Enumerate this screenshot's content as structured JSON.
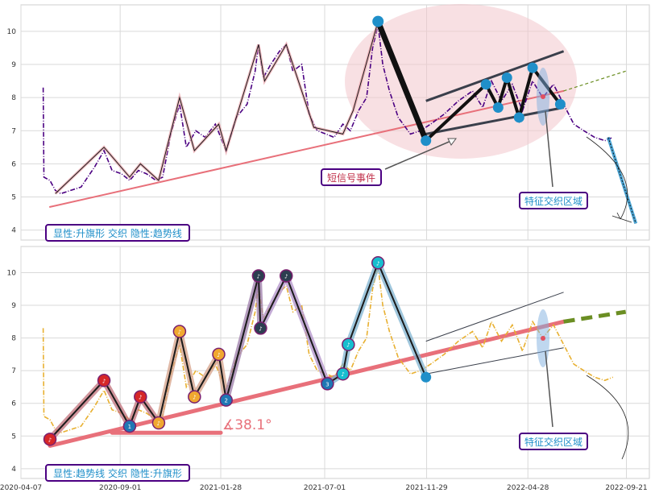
{
  "chart_data": [
    {
      "type": "line",
      "panel": "top",
      "ylim": [
        3.7,
        10.8
      ],
      "yticks": [
        "4",
        "5",
        "6",
        "7",
        "8",
        "9",
        "10"
      ],
      "x_start": "2020-04-07",
      "x_end": "2022-10-25",
      "grid": true,
      "legend_label": "显性:升旗形 交织 隐性:趋势线",
      "annotation_short_signal": "短信号事件",
      "annotation_crossing_zone": "特征交织区域",
      "price_series": [
        {
          "x": "2020-05-10",
          "y": 8.3
        },
        {
          "x": "2020-05-11",
          "y": 5.6
        },
        {
          "x": "2020-05-20",
          "y": 5.5
        },
        {
          "x": "2020-05-28",
          "y": 5.2
        },
        {
          "x": "2020-06-05",
          "y": 5.1
        },
        {
          "x": "2020-06-20",
          "y": 5.2
        },
        {
          "x": "2020-07-05",
          "y": 5.3
        },
        {
          "x": "2020-07-25",
          "y": 5.9
        },
        {
          "x": "2020-08-08",
          "y": 6.4
        },
        {
          "x": "2020-08-20",
          "y": 5.8
        },
        {
          "x": "2020-09-03",
          "y": 5.7
        },
        {
          "x": "2020-09-15",
          "y": 5.5
        },
        {
          "x": "2020-09-28",
          "y": 5.8
        },
        {
          "x": "2020-10-10",
          "y": 5.7
        },
        {
          "x": "2020-10-24",
          "y": 5.5
        },
        {
          "x": "2020-11-03",
          "y": 5.6
        },
        {
          "x": "2020-11-15",
          "y": 6.9
        },
        {
          "x": "2020-11-28",
          "y": 7.8
        },
        {
          "x": "2020-12-08",
          "y": 6.5
        },
        {
          "x": "2020-12-22",
          "y": 7.0
        },
        {
          "x": "2021-01-05",
          "y": 6.8
        },
        {
          "x": "2021-01-20",
          "y": 7.2
        },
        {
          "x": "2021-02-05",
          "y": 6.4
        },
        {
          "x": "2021-02-20",
          "y": 7.4
        },
        {
          "x": "2021-03-08",
          "y": 7.8
        },
        {
          "x": "2021-03-20",
          "y": 8.8
        },
        {
          "x": "2021-03-25",
          "y": 9.6
        },
        {
          "x": "2021-04-01",
          "y": 8.6
        },
        {
          "x": "2021-04-12",
          "y": 9.0
        },
        {
          "x": "2021-04-25",
          "y": 9.4
        },
        {
          "x": "2021-05-05",
          "y": 9.6
        },
        {
          "x": "2021-05-15",
          "y": 8.8
        },
        {
          "x": "2021-05-28",
          "y": 9.0
        },
        {
          "x": "2021-06-08",
          "y": 7.5
        },
        {
          "x": "2021-06-20",
          "y": 7.0
        },
        {
          "x": "2021-07-03",
          "y": 6.9
        },
        {
          "x": "2021-07-15",
          "y": 6.8
        },
        {
          "x": "2021-07-28",
          "y": 7.2
        },
        {
          "x": "2021-08-08",
          "y": 7.0
        },
        {
          "x": "2021-08-20",
          "y": 7.6
        },
        {
          "x": "2021-09-01",
          "y": 8.0
        },
        {
          "x": "2021-09-10",
          "y": 9.5
        },
        {
          "x": "2021-09-18",
          "y": 10.2
        },
        {
          "x": "2021-09-25",
          "y": 9.0
        },
        {
          "x": "2021-10-05",
          "y": 8.2
        },
        {
          "x": "2021-10-18",
          "y": 7.4
        },
        {
          "x": "2021-11-05",
          "y": 6.9
        },
        {
          "x": "2021-11-20",
          "y": 7.0
        },
        {
          "x": "2021-12-05",
          "y": 7.2
        },
        {
          "x": "2021-12-25",
          "y": 7.5
        },
        {
          "x": "2022-01-15",
          "y": 7.9
        },
        {
          "x": "2022-02-05",
          "y": 8.2
        },
        {
          "x": "2022-02-20",
          "y": 7.7
        },
        {
          "x": "2022-03-05",
          "y": 8.5
        },
        {
          "x": "2022-03-20",
          "y": 7.9
        },
        {
          "x": "2022-04-05",
          "y": 8.4
        },
        {
          "x": "2022-04-20",
          "y": 7.6
        },
        {
          "x": "2022-05-05",
          "y": 8.5
        },
        {
          "x": "2022-05-20",
          "y": 8.0
        },
        {
          "x": "2022-06-05",
          "y": 8.4
        },
        {
          "x": "2022-06-20",
          "y": 7.8
        },
        {
          "x": "2022-07-05",
          "y": 7.2
        },
        {
          "x": "2022-07-20",
          "y": 7.0
        },
        {
          "x": "2022-08-05",
          "y": 6.8
        },
        {
          "x": "2022-08-20",
          "y": 6.7
        },
        {
          "x": "2022-09-01",
          "y": 6.8
        }
      ],
      "zigzag": [
        {
          "x": "2020-05-28",
          "y": 5.1
        },
        {
          "x": "2020-08-08",
          "y": 6.5
        },
        {
          "x": "2020-09-15",
          "y": 5.6
        },
        {
          "x": "2020-10-01",
          "y": 6.0
        },
        {
          "x": "2020-10-28",
          "y": 5.5
        },
        {
          "x": "2020-11-28",
          "y": 8.0
        },
        {
          "x": "2020-12-20",
          "y": 6.4
        },
        {
          "x": "2021-01-25",
          "y": 7.2
        },
        {
          "x": "2021-02-05",
          "y": 6.4
        },
        {
          "x": "2021-03-25",
          "y": 9.6
        },
        {
          "x": "2021-04-03",
          "y": 8.5
        },
        {
          "x": "2021-05-05",
          "y": 9.6
        },
        {
          "x": "2021-06-15",
          "y": 7.1
        },
        {
          "x": "2021-07-28",
          "y": 6.9
        },
        {
          "x": "2021-08-12",
          "y": 7.6
        },
        {
          "x": "2021-09-18",
          "y": 10.3
        }
      ],
      "pattern_points": [
        {
          "x": "2021-09-18",
          "y": 10.3
        },
        {
          "x": "2021-11-28",
          "y": 6.7
        },
        {
          "x": "2022-02-25",
          "y": 8.4
        },
        {
          "x": "2022-03-15",
          "y": 7.7
        },
        {
          "x": "2022-03-28",
          "y": 8.6
        },
        {
          "x": "2022-04-15",
          "y": 7.4
        },
        {
          "x": "2022-05-05",
          "y": 8.9
        },
        {
          "x": "2022-06-15",
          "y": 7.8
        }
      ],
      "trend_line": [
        {
          "x": "2020-05-20",
          "y": 4.7
        },
        {
          "x": "2022-06-20",
          "y": 8.2
        }
      ],
      "trend_extension": [
        {
          "x": "2022-06-20",
          "y": 8.2
        },
        {
          "x": "2022-09-20",
          "y": 8.8
        }
      ],
      "channel_upper": [
        {
          "x": "2021-11-28",
          "y": 7.9
        },
        {
          "x": "2022-06-20",
          "y": 9.4
        }
      ],
      "channel_lower": [
        {
          "x": "2021-11-28",
          "y": 6.9
        },
        {
          "x": "2022-06-20",
          "y": 7.7
        }
      ],
      "forecast_line": [
        {
          "x": "2022-08-25",
          "y": 6.8
        },
        {
          "x": "2022-10-05",
          "y": 4.2
        }
      ]
    },
    {
      "type": "line",
      "panel": "bottom",
      "ylim": [
        3.7,
        10.8
      ],
      "yticks": [
        "4",
        "5",
        "6",
        "7",
        "8",
        "9",
        "10"
      ],
      "x_start": "2020-04-07",
      "x_end": "2022-10-25",
      "xticks": [
        "2020-04-07",
        "2020-09-01",
        "2021-01-28",
        "2021-07-01",
        "2021-11-29",
        "2022-04-28",
        "2022-09-21"
      ],
      "grid": true,
      "legend_label": "显性:趋势线 交织 隐性:升旗形",
      "annotation_angle": "∡38.1°",
      "annotation_crossing_zone": "特征交织区域",
      "price_series": [
        {
          "x": "2020-05-10",
          "y": 8.3
        },
        {
          "x": "2020-05-11",
          "y": 5.6
        },
        {
          "x": "2020-05-20",
          "y": 5.5
        },
        {
          "x": "2020-05-28",
          "y": 5.2
        },
        {
          "x": "2020-06-05",
          "y": 5.1
        },
        {
          "x": "2020-06-20",
          "y": 5.2
        },
        {
          "x": "2020-07-05",
          "y": 5.3
        },
        {
          "x": "2020-07-25",
          "y": 5.9
        },
        {
          "x": "2020-08-08",
          "y": 6.4
        },
        {
          "x": "2020-08-20",
          "y": 5.8
        },
        {
          "x": "2020-09-03",
          "y": 5.7
        },
        {
          "x": "2020-09-15",
          "y": 5.5
        },
        {
          "x": "2020-09-28",
          "y": 5.8
        },
        {
          "x": "2020-10-10",
          "y": 5.7
        },
        {
          "x": "2020-10-24",
          "y": 5.5
        },
        {
          "x": "2020-11-03",
          "y": 5.6
        },
        {
          "x": "2020-11-15",
          "y": 6.9
        },
        {
          "x": "2020-11-28",
          "y": 7.8
        },
        {
          "x": "2020-12-08",
          "y": 6.5
        },
        {
          "x": "2020-12-22",
          "y": 7.0
        },
        {
          "x": "2021-01-05",
          "y": 6.8
        },
        {
          "x": "2021-01-20",
          "y": 7.2
        },
        {
          "x": "2021-02-05",
          "y": 6.4
        },
        {
          "x": "2021-02-20",
          "y": 7.4
        },
        {
          "x": "2021-03-08",
          "y": 7.8
        },
        {
          "x": "2021-03-20",
          "y": 8.8
        },
        {
          "x": "2021-03-25",
          "y": 9.6
        },
        {
          "x": "2021-04-01",
          "y": 8.6
        },
        {
          "x": "2021-04-12",
          "y": 9.0
        },
        {
          "x": "2021-04-25",
          "y": 9.4
        },
        {
          "x": "2021-05-05",
          "y": 9.6
        },
        {
          "x": "2021-05-15",
          "y": 8.8
        },
        {
          "x": "2021-05-28",
          "y": 9.0
        },
        {
          "x": "2021-06-08",
          "y": 7.5
        },
        {
          "x": "2021-06-20",
          "y": 7.0
        },
        {
          "x": "2021-07-03",
          "y": 6.9
        },
        {
          "x": "2021-07-15",
          "y": 6.8
        },
        {
          "x": "2021-07-28",
          "y": 7.2
        },
        {
          "x": "2021-08-08",
          "y": 7.0
        },
        {
          "x": "2021-08-20",
          "y": 7.6
        },
        {
          "x": "2021-09-01",
          "y": 8.0
        },
        {
          "x": "2021-09-10",
          "y": 9.5
        },
        {
          "x": "2021-09-18",
          "y": 10.2
        },
        {
          "x": "2021-09-25",
          "y": 9.0
        },
        {
          "x": "2021-10-05",
          "y": 8.2
        },
        {
          "x": "2021-10-18",
          "y": 7.4
        },
        {
          "x": "2021-11-05",
          "y": 6.9
        },
        {
          "x": "2021-11-20",
          "y": 7.0
        },
        {
          "x": "2021-12-05",
          "y": 7.2
        },
        {
          "x": "2021-12-25",
          "y": 7.5
        },
        {
          "x": "2022-01-15",
          "y": 7.9
        },
        {
          "x": "2022-02-05",
          "y": 8.2
        },
        {
          "x": "2022-02-20",
          "y": 7.7
        },
        {
          "x": "2022-03-05",
          "y": 8.5
        },
        {
          "x": "2022-03-20",
          "y": 7.9
        },
        {
          "x": "2022-04-05",
          "y": 8.4
        },
        {
          "x": "2022-04-20",
          "y": 7.6
        },
        {
          "x": "2022-05-05",
          "y": 8.5
        },
        {
          "x": "2022-05-20",
          "y": 8.0
        },
        {
          "x": "2022-06-05",
          "y": 8.4
        },
        {
          "x": "2022-06-20",
          "y": 7.8
        },
        {
          "x": "2022-07-05",
          "y": 7.2
        },
        {
          "x": "2022-07-20",
          "y": 7.0
        },
        {
          "x": "2022-08-05",
          "y": 6.8
        },
        {
          "x": "2022-08-20",
          "y": 6.7
        },
        {
          "x": "2022-09-01",
          "y": 6.8
        }
      ],
      "zigzag": [
        {
          "x": "2020-05-20",
          "y": 4.9
        },
        {
          "x": "2020-08-08",
          "y": 6.7
        },
        {
          "x": "2020-09-15",
          "y": 5.3
        },
        {
          "x": "2020-10-01",
          "y": 6.2
        },
        {
          "x": "2020-10-28",
          "y": 5.4
        },
        {
          "x": "2020-11-28",
          "y": 8.2
        },
        {
          "x": "2020-12-20",
          "y": 6.2
        },
        {
          "x": "2021-01-25",
          "y": 7.5
        },
        {
          "x": "2021-02-05",
          "y": 6.1
        },
        {
          "x": "2021-03-25",
          "y": 9.9
        },
        {
          "x": "2021-03-28",
          "y": 8.3
        },
        {
          "x": "2021-05-05",
          "y": 9.9
        },
        {
          "x": "2021-07-05",
          "y": 6.6
        },
        {
          "x": "2021-07-28",
          "y": 6.9
        },
        {
          "x": "2021-08-05",
          "y": 7.8
        },
        {
          "x": "2021-09-18",
          "y": 10.3
        },
        {
          "x": "2021-11-28",
          "y": 6.8
        }
      ],
      "markers": [
        {
          "x": "2020-05-20",
          "y": 4.9,
          "label": "♪",
          "color": "#d62728"
        },
        {
          "x": "2020-08-08",
          "y": 6.7,
          "label": "♪",
          "color": "#d62728"
        },
        {
          "x": "2020-09-15",
          "y": 5.3,
          "label": "1",
          "color": "#1f77b4"
        },
        {
          "x": "2020-10-01",
          "y": 6.2,
          "label": "♪",
          "color": "#d62728"
        },
        {
          "x": "2020-10-28",
          "y": 5.4,
          "label": "♪",
          "color": "#f0a830"
        },
        {
          "x": "2020-11-28",
          "y": 8.2,
          "label": "♪",
          "color": "#f0a830"
        },
        {
          "x": "2020-12-20",
          "y": 6.2,
          "label": "♪",
          "color": "#f0a830"
        },
        {
          "x": "2021-01-25",
          "y": 7.5,
          "label": "♪",
          "color": "#f0a830"
        },
        {
          "x": "2021-02-05",
          "y": 6.1,
          "label": "2",
          "color": "#1f77b4"
        },
        {
          "x": "2021-03-25",
          "y": 9.9,
          "label": "♪",
          "color": "#2c3e50"
        },
        {
          "x": "2021-03-28",
          "y": 8.3,
          "label": "♪",
          "color": "#2c3e50"
        },
        {
          "x": "2021-05-05",
          "y": 9.9,
          "label": "♪",
          "color": "#2c3e50"
        },
        {
          "x": "2021-07-05",
          "y": 6.6,
          "label": "3",
          "color": "#1f77b4"
        },
        {
          "x": "2021-07-28",
          "y": 6.9,
          "label": "♪",
          "color": "#17becf"
        },
        {
          "x": "2021-08-05",
          "y": 7.8,
          "label": "♪",
          "color": "#17becf"
        },
        {
          "x": "2021-09-18",
          "y": 10.3,
          "label": "♪",
          "color": "#17becf"
        }
      ],
      "trend_line": [
        {
          "x": "2020-05-20",
          "y": 4.7
        },
        {
          "x": "2022-06-20",
          "y": 8.5
        }
      ],
      "trend_extension": [
        {
          "x": "2022-06-20",
          "y": 8.5
        },
        {
          "x": "2022-09-20",
          "y": 8.8
        }
      ],
      "angle_base": [
        {
          "x": "2020-08-20",
          "y": 5.1
        },
        {
          "x": "2021-01-28",
          "y": 5.1
        }
      ],
      "channel_upper": [
        {
          "x": "2021-11-28",
          "y": 7.9
        },
        {
          "x": "2022-06-20",
          "y": 9.4
        }
      ],
      "channel_lower": [
        {
          "x": "2021-11-28",
          "y": 6.9
        },
        {
          "x": "2022-06-20",
          "y": 7.7
        }
      ]
    }
  ],
  "colors": {
    "price_top": "#4b0082",
    "price_bottom": "#e8b030",
    "trend": "#e8707a",
    "extension": "#6b8e23",
    "channel": "#3a3f4b",
    "highlight_zone": "#f2c6cc",
    "label_text": "#1f8fc9",
    "label_border": "#4b0082",
    "pattern_points": "#1f8fc9"
  }
}
